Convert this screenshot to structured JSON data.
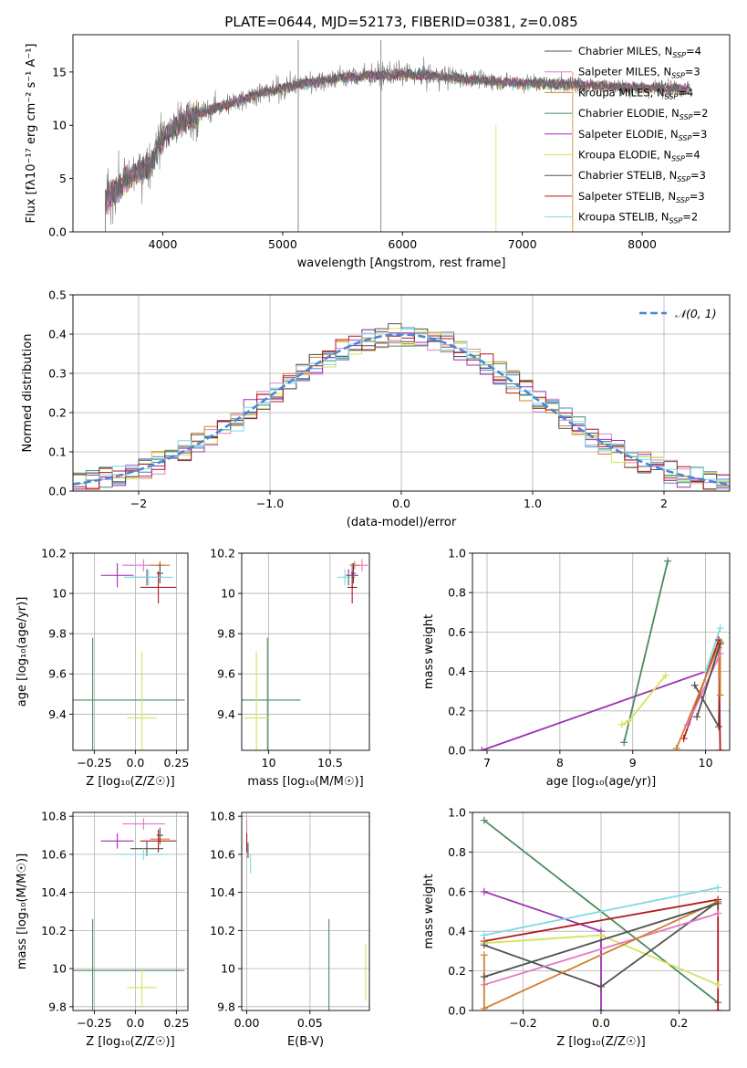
{
  "figure": {
    "title": "PLATE=0644, MJD=52173, FIBERID=0381, z=0.085"
  },
  "colors": {
    "cMILES": "#4f4f4f",
    "sMILES": "#e377c2",
    "kMILES": "#d2802d",
    "cELODIE": "#4c8a5e",
    "sELODIE": "#9d2fb0",
    "kELODIE": "#d4e35a",
    "cSTELIB": "#555555",
    "sSTELIB": "#b0171f",
    "kSTELIB": "#7fd9e0",
    "normal": "#4a86d6",
    "grid": "#b0b0b0"
  },
  "legend_spectrum": [
    {
      "base": "Chabrier MILES, N",
      "sub": "SSP",
      "tail": "=4",
      "color_key": "cMILES"
    },
    {
      "base": "Salpeter MILES, N",
      "sub": "SSP",
      "tail": "=3",
      "color_key": "sMILES"
    },
    {
      "base": "Kroupa MILES, N",
      "sub": "SSP",
      "tail": "=4",
      "color_key": "kMILES"
    },
    {
      "base": "Chabrier ELODIE, N",
      "sub": "SSP",
      "tail": "=2",
      "color_key": "cELODIE"
    },
    {
      "base": "Salpeter ELODIE, N",
      "sub": "SSP",
      "tail": "=3",
      "color_key": "sELODIE"
    },
    {
      "base": "Kroupa ELODIE, N",
      "sub": "SSP",
      "tail": "=4",
      "color_key": "kELODIE"
    },
    {
      "base": "Chabrier STELIB, N",
      "sub": "SSP",
      "tail": "=3",
      "color_key": "cSTELIB"
    },
    {
      "base": "Salpeter STELIB, N",
      "sub": "SSP",
      "tail": "=3",
      "color_key": "sSTELIB"
    },
    {
      "base": "Kroupa STELIB, N",
      "sub": "SSP",
      "tail": "=2",
      "color_key": "kSTELIB"
    }
  ],
  "chart_data": [
    {
      "id": "spectrum",
      "type": "line",
      "xlabel": "wavelength [Angstrom, rest frame]",
      "ylabel": "Flux [fλ10⁻¹⁷ erg cm⁻² s⁻¹ A⁻¹]",
      "xlim": [
        3250,
        8730
      ],
      "ylim": [
        0,
        18.5
      ],
      "xticks": [
        4000,
        5000,
        6000,
        7000,
        8000
      ],
      "yticks": [
        0,
        5,
        10,
        15
      ],
      "grid": false,
      "legend": "right",
      "continuum": {
        "x": [
          3520,
          3700,
          3900,
          4000,
          4200,
          4400,
          4600,
          4800,
          5000,
          5200,
          5500,
          5800,
          6000,
          6300,
          6600,
          6900,
          7200,
          7500,
          7800,
          8100,
          8400
        ],
        "y": [
          3.0,
          5.0,
          6.5,
          9.0,
          10.5,
          11.5,
          12.2,
          13.0,
          13.5,
          14.0,
          14.5,
          14.7,
          14.8,
          14.6,
          14.3,
          14.0,
          13.9,
          13.8,
          13.6,
          13.5,
          13.4
        ]
      }
    },
    {
      "id": "residuals",
      "type": "histogram",
      "xlabel": "(data-model)/error",
      "ylabel": "Normed distribution",
      "xlim": [
        -2.5,
        2.5
      ],
      "ylim": [
        0,
        0.5
      ],
      "xticks": [
        -2,
        -1,
        0,
        1,
        2
      ],
      "yticks": [
        0.0,
        0.1,
        0.2,
        0.3,
        0.4,
        0.5
      ],
      "grid": true,
      "legend": "top-right",
      "legend_label": "𝒩(0, 1)",
      "bin_width": 0.1
    },
    {
      "id": "age_vs_Z",
      "type": "errorbar",
      "xlabel": "Z [log₁₀(Z/Z☉)]",
      "ylabel": "age  [log₁₀(age/yr)]",
      "xlim": [
        -0.38,
        0.32
      ],
      "ylim": [
        9.22,
        10.2
      ],
      "xticks": [
        -0.25,
        0.0,
        0.25
      ],
      "yticks": [
        9.4,
        9.6,
        9.8,
        10.0,
        10.2
      ],
      "grid": true,
      "points": [
        {
          "key": "cELODIE",
          "x": -0.26,
          "y": 9.47,
          "xerr": 0.56,
          "yerr": 0.31
        },
        {
          "key": "kELODIE",
          "x": 0.04,
          "y": 9.38,
          "xerr": 0.09,
          "yerr": 0.33
        },
        {
          "key": "sELODIE",
          "x": -0.11,
          "y": 10.09,
          "xerr": 0.1,
          "yerr": 0.06
        },
        {
          "key": "sMILES",
          "x": 0.05,
          "y": 10.14,
          "xerr": 0.13,
          "yerr": 0.03
        },
        {
          "key": "kMILES",
          "x": 0.15,
          "y": 10.14,
          "xerr": 0.06,
          "yerr": 0.02
        },
        {
          "key": "cMILES",
          "x": 0.15,
          "y": 10.1,
          "xerr": 0.02,
          "yerr": 0.05
        },
        {
          "key": "cSTELIB",
          "x": 0.07,
          "y": 10.08,
          "xerr": 0.1,
          "yerr": 0.04
        },
        {
          "key": "sSTELIB",
          "x": 0.14,
          "y": 10.03,
          "xerr": 0.11,
          "yerr": 0.08
        },
        {
          "key": "kSTELIB",
          "x": 0.08,
          "y": 10.08,
          "xerr": 0.15,
          "yerr": 0.04
        }
      ]
    },
    {
      "id": "age_vs_mass",
      "type": "errorbar",
      "xlabel": "mass [log₁₀(M/M☉)]",
      "ylabel": "",
      "xlim": [
        9.78,
        10.82
      ],
      "ylim": [
        9.22,
        10.2
      ],
      "xticks": [
        10.0,
        10.5
      ],
      "yticks": [
        9.4,
        9.6,
        9.8,
        10.0,
        10.2
      ],
      "grid": true,
      "points": [
        {
          "key": "cELODIE",
          "x": 9.99,
          "y": 9.47,
          "xerr": 0.27,
          "yerr": 0.31
        },
        {
          "key": "kELODIE",
          "x": 9.9,
          "y": 9.38,
          "xerr": 0.1,
          "yerr": 0.33
        },
        {
          "key": "sELODIE",
          "x": 10.68,
          "y": 10.09,
          "xerr": 0.05,
          "yerr": 0.06
        },
        {
          "key": "sMILES",
          "x": 10.76,
          "y": 10.14,
          "xerr": 0.05,
          "yerr": 0.03
        },
        {
          "key": "kMILES",
          "x": 10.7,
          "y": 10.14,
          "xerr": 0.04,
          "yerr": 0.02
        },
        {
          "key": "cMILES",
          "x": 10.69,
          "y": 10.1,
          "xerr": 0.02,
          "yerr": 0.05
        },
        {
          "key": "cSTELIB",
          "x": 10.65,
          "y": 10.08,
          "xerr": 0.05,
          "yerr": 0.04
        },
        {
          "key": "sSTELIB",
          "x": 10.68,
          "y": 10.03,
          "xerr": 0.04,
          "yerr": 0.08
        },
        {
          "key": "kSTELIB",
          "x": 10.62,
          "y": 10.08,
          "xerr": 0.06,
          "yerr": 0.04
        }
      ]
    },
    {
      "id": "weight_vs_age",
      "type": "line",
      "xlabel": "age  [log₁₀(age/yr)]",
      "ylabel": "mass weight",
      "xlim": [
        6.8,
        10.33
      ],
      "ylim": [
        0,
        1.0
      ],
      "xticks": [
        7,
        8,
        9,
        10
      ],
      "yticks": [
        0.0,
        0.2,
        0.4,
        0.6,
        0.8,
        1.0
      ],
      "grid": true,
      "series": [
        {
          "key": "sELODIE",
          "x": [
            6.93,
            10.0
          ],
          "y": [
            0.0,
            0.4
          ]
        },
        {
          "key": "cELODIE",
          "x": [
            8.88,
            9.48
          ],
          "y": [
            0.04,
            0.96
          ]
        },
        {
          "key": "kELODIE",
          "x": [
            8.85,
            8.95,
            9.45
          ],
          "y": [
            0.13,
            0.15,
            0.38
          ]
        },
        {
          "key": "cSTELIB",
          "x": [
            9.85,
            10.18,
            10.2
          ],
          "y": [
            0.33,
            0.12,
            0.55
          ]
        },
        {
          "key": "kSTELIB",
          "x": [
            10.0,
            10.2
          ],
          "y": [
            0.4,
            0.62
          ]
        },
        {
          "key": "sSTELIB",
          "x": [
            9.7,
            10.18,
            10.2
          ],
          "y": [
            0.06,
            0.56,
            0.0
          ]
        },
        {
          "key": "kMILES",
          "x": [
            9.6,
            10.2,
            10.2,
            10.18
          ],
          "y": [
            0.01,
            0.55,
            0.28,
            0.52
          ]
        },
        {
          "key": "sMILES",
          "x": [
            9.75,
            10.2
          ],
          "y": [
            0.13,
            0.49
          ]
        },
        {
          "key": "cMILES",
          "x": [
            9.88,
            10.2
          ],
          "y": [
            0.17,
            0.54
          ]
        }
      ]
    },
    {
      "id": "mass_vs_Z",
      "type": "errorbar",
      "xlabel": "Z [log₁₀(Z/Z☉)]",
      "ylabel": "mass [log₁₀(M/M☉)]",
      "xlim": [
        -0.38,
        0.32
      ],
      "ylim": [
        9.78,
        10.82
      ],
      "xticks": [
        -0.25,
        0.0,
        0.25
      ],
      "yticks": [
        9.8,
        10.0,
        10.2,
        10.4,
        10.6,
        10.8
      ],
      "grid": true,
      "points": [
        {
          "key": "cELODIE",
          "x": -0.26,
          "y": 9.99,
          "xerr": 0.56,
          "yerr": 0.27
        },
        {
          "key": "kELODIE",
          "x": 0.04,
          "y": 9.9,
          "xerr": 0.09,
          "yerr": 0.1
        },
        {
          "key": "sELODIE",
          "x": -0.11,
          "y": 10.67,
          "xerr": 0.1,
          "yerr": 0.04
        },
        {
          "key": "sMILES",
          "x": 0.05,
          "y": 10.76,
          "xerr": 0.13,
          "yerr": 0.03
        },
        {
          "key": "kMILES",
          "x": 0.15,
          "y": 10.68,
          "xerr": 0.06,
          "yerr": 0.03
        },
        {
          "key": "cMILES",
          "x": 0.15,
          "y": 10.7,
          "xerr": 0.02,
          "yerr": 0.04
        },
        {
          "key": "cSTELIB",
          "x": 0.07,
          "y": 10.63,
          "xerr": 0.1,
          "yerr": 0.04
        },
        {
          "key": "sSTELIB",
          "x": 0.14,
          "y": 10.67,
          "xerr": 0.11,
          "yerr": 0.06
        },
        {
          "key": "kSTELIB",
          "x": 0.05,
          "y": 10.6,
          "xerr": 0.15,
          "yerr": 0.03
        }
      ]
    },
    {
      "id": "mass_vs_EBV",
      "type": "errorbar",
      "xlabel": "E(B-V)",
      "ylabel": "",
      "xlim": [
        -0.004,
        0.097
      ],
      "ylim": [
        9.78,
        10.82
      ],
      "xticks": [
        0.0,
        0.05
      ],
      "xtick_labels": [
        "0.00",
        "0.05"
      ],
      "yticks": [
        9.8,
        10.0,
        10.2,
        10.4,
        10.6,
        10.8
      ],
      "grid": true,
      "points": [
        {
          "key": "cELODIE",
          "x": 0.065,
          "y": 10.02,
          "xerr": 0,
          "yerr": 0.24
        },
        {
          "key": "kELODIE",
          "x": 0.094,
          "y": 9.98,
          "xerr": 0,
          "yerr": 0.15
        },
        {
          "key": "sMILES",
          "x": 0.0,
          "y": 10.7,
          "xerr": 0,
          "yerr": 0.08
        },
        {
          "key": "sSTELIB",
          "x": 0.0,
          "y": 10.66,
          "xerr": 0,
          "yerr": 0.05
        },
        {
          "key": "kSTELIB",
          "x": 0.003,
          "y": 10.55,
          "xerr": 0,
          "yerr": 0.05
        },
        {
          "key": "cMILES",
          "x": 0.001,
          "y": 10.62,
          "xerr": 0,
          "yerr": 0.04
        }
      ]
    },
    {
      "id": "weight_vs_Z",
      "type": "line",
      "xlabel": "Z [log₁₀(Z/Z☉)]",
      "ylabel": "mass weight",
      "xlim": [
        -0.33,
        0.33
      ],
      "ylim": [
        0,
        1.0
      ],
      "xticks": [
        -0.2,
        0.0,
        0.2
      ],
      "yticks": [
        0.0,
        0.2,
        0.4,
        0.6,
        0.8,
        1.0
      ],
      "grid": true,
      "series": [
        {
          "key": "cELODIE",
          "x": [
            -0.3,
            0.3
          ],
          "y": [
            0.96,
            0.04
          ]
        },
        {
          "key": "sELODIE",
          "x": [
            -0.3,
            0.0,
            0.0
          ],
          "y": [
            0.6,
            0.4,
            0.0
          ]
        },
        {
          "key": "kSTELIB",
          "x": [
            -0.3,
            0.3
          ],
          "y": [
            0.38,
            0.62
          ]
        },
        {
          "key": "sSTELIB",
          "x": [
            -0.3,
            0.3,
            0.3
          ],
          "y": [
            0.35,
            0.56,
            0.0
          ]
        },
        {
          "key": "kELODIE",
          "x": [
            -0.3,
            0.0,
            0.3
          ],
          "y": [
            0.34,
            0.38,
            0.13
          ]
        },
        {
          "key": "cSTELIB",
          "x": [
            -0.3,
            0.0,
            0.3
          ],
          "y": [
            0.33,
            0.12,
            0.55
          ]
        },
        {
          "key": "sMILES",
          "x": [
            -0.3,
            0.3
          ],
          "y": [
            0.13,
            0.49
          ]
        },
        {
          "key": "kMILES",
          "x": [
            -0.3,
            -0.3,
            0.3
          ],
          "y": [
            0.28,
            0.01,
            0.55
          ]
        },
        {
          "key": "cMILES",
          "x": [
            -0.3,
            0.3
          ],
          "y": [
            0.17,
            0.54
          ]
        }
      ]
    }
  ]
}
